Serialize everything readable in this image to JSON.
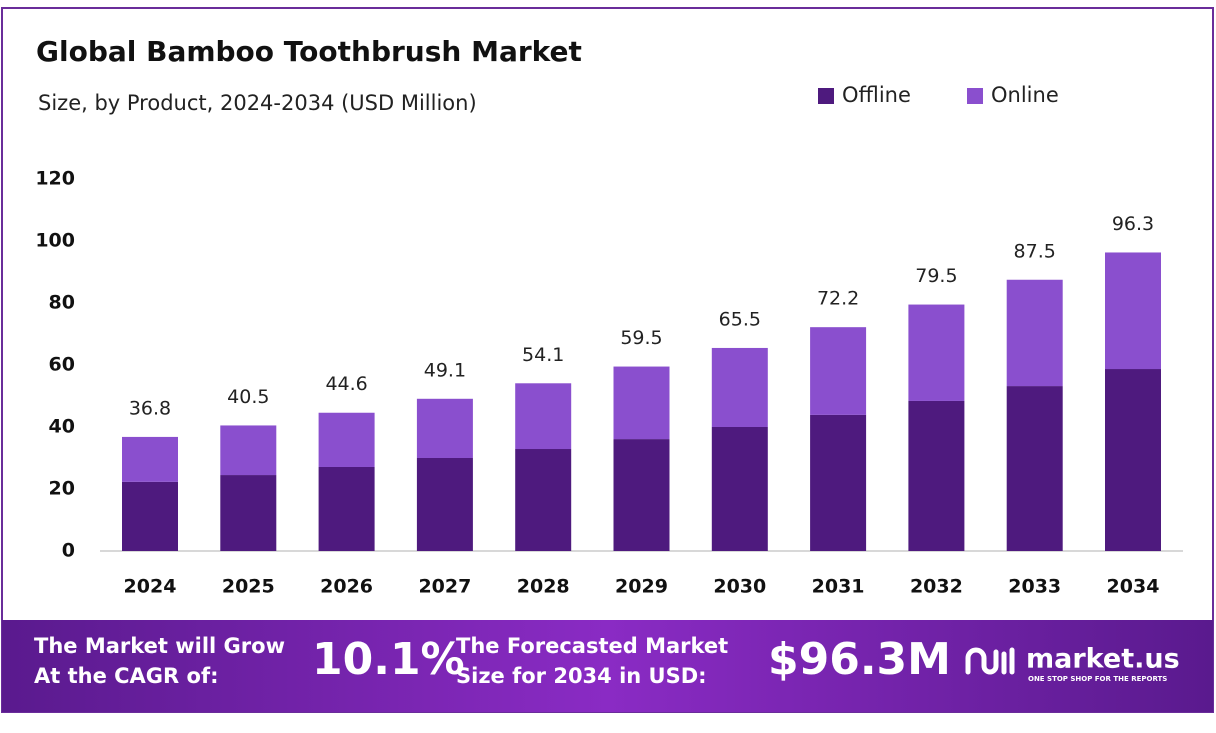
{
  "chart_data": {
    "type": "stacked-bar",
    "title": "Global Bamboo Toothbrush Market",
    "subtitle": "Size, by Product, 2024-2034 (USD Million)",
    "categories": [
      "2024",
      "2025",
      "2026",
      "2027",
      "2028",
      "2029",
      "2030",
      "2031",
      "2032",
      "2033",
      "2034"
    ],
    "series": [
      {
        "name": "Offline",
        "color": "#4e1a7e",
        "values": [
          22.3,
          24.5,
          27.1,
          30.0,
          32.9,
          36.1,
          40.0,
          43.9,
          48.4,
          53.2,
          58.7
        ]
      },
      {
        "name": "Online",
        "color": "#8a4fce",
        "values": [
          14.5,
          16.0,
          17.5,
          19.1,
          21.2,
          23.4,
          25.5,
          28.3,
          31.1,
          34.3,
          37.6
        ]
      }
    ],
    "totals": [
      36.8,
      40.5,
      44.6,
      49.1,
      54.1,
      59.5,
      65.5,
      72.2,
      79.5,
      87.5,
      96.3
    ],
    "ylim": [
      0,
      120
    ],
    "yticks": [
      0,
      20,
      40,
      60,
      80,
      100,
      120
    ],
    "legend": "top-right"
  },
  "footer": {
    "cagr_text": [
      "The Market will Grow",
      "At the CAGR of:"
    ],
    "cagr_value": "10.1%",
    "size_text": [
      "The Forecasted Market",
      "Size for 2034 in USD:"
    ],
    "size_value": "$96.3M",
    "brand": "market.us",
    "tagline": "ONE STOP SHOP FOR THE REPORTS"
  }
}
